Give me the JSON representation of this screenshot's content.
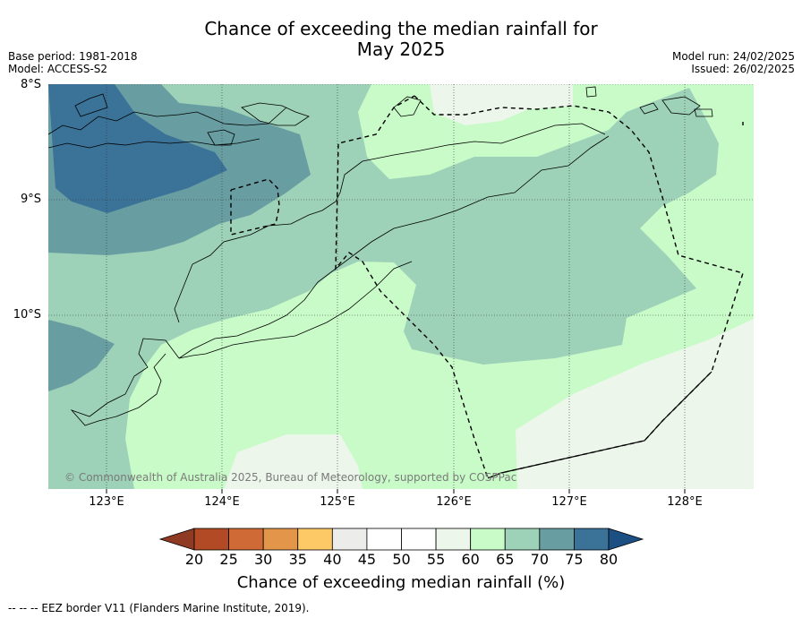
{
  "title": {
    "line1": "Chance of exceeding the median rainfall for",
    "line2": "May 2025"
  },
  "meta": {
    "base_period": "Base period: 1981-2018",
    "model": "Model: ACCESS-S2",
    "model_run": "Model run: 24/02/2025",
    "issued": "Issued: 26/02/2025"
  },
  "axes": {
    "lat_labels": [
      "8°S",
      "9°S",
      "10°S"
    ],
    "lon_labels": [
      "123°E",
      "124°E",
      "125°E",
      "126°E",
      "127°E",
      "128°E"
    ]
  },
  "map": {
    "extent": {
      "lon_min": 122.5,
      "lon_max": 128.6,
      "lat_max": -7.98,
      "lat_min": -11.48
    },
    "copyright": "© Commonwealth of Australia 2025, Bureau of Meteorology, supported by COSPPac"
  },
  "colorbar": {
    "ticks": [
      "20",
      "25",
      "30",
      "35",
      "40",
      "45",
      "50",
      "55",
      "60",
      "65",
      "70",
      "75",
      "80"
    ],
    "colors": [
      "#b24a26",
      "#cf6a36",
      "#e3954a",
      "#fdc866",
      "#ececea",
      "#ffffff",
      "#ffffff",
      "#ecf6ea",
      "#c8fbc8",
      "#9dd1b8",
      "#689ea2",
      "#3b7297"
    ],
    "under_color": "#8f3a22",
    "over_color": "#1c4f82",
    "label": "Chance of exceeding median rainfall (%)"
  },
  "footnote": "--  --  -- EEZ border V11 (Flanders Marine Institute, 2019)."
}
